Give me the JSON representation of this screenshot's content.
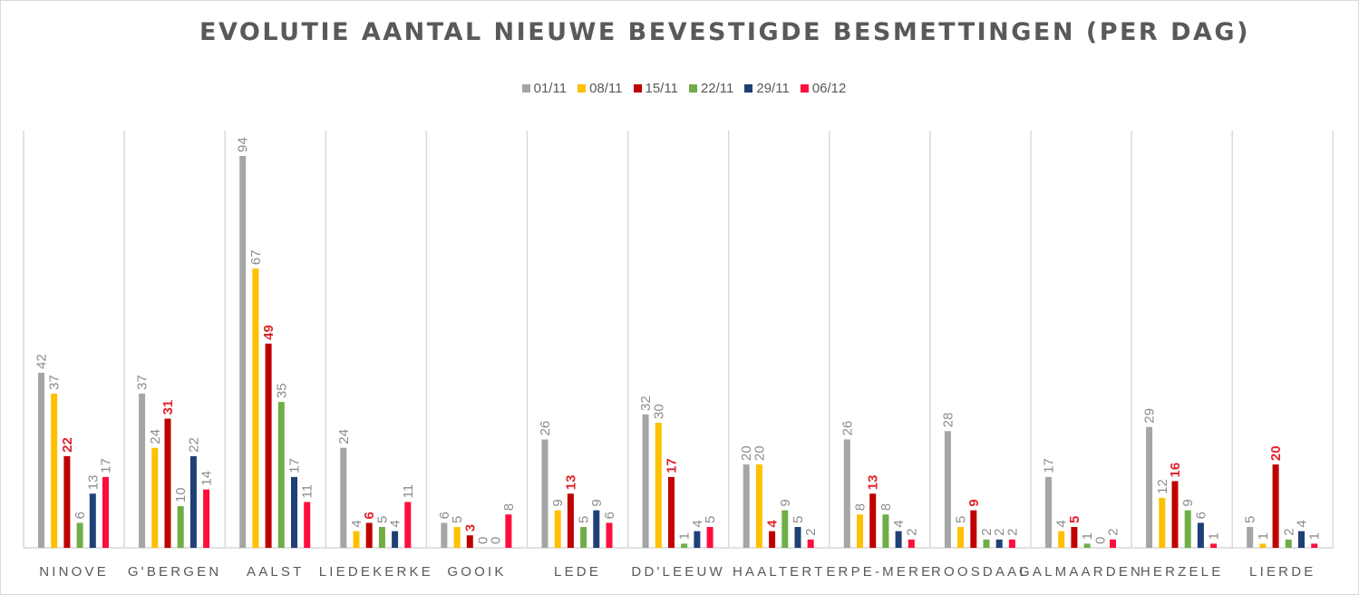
{
  "chart_data": {
    "type": "bar",
    "title": "EVOLUTIE AANTAL NIEUWE BEVESTIGDE BESMETTINGEN (PER DAG)",
    "xlabel": "",
    "ylabel": "",
    "ylim": [
      0,
      100
    ],
    "grid": "vertical category separators",
    "legend_position": "top",
    "categories": [
      "NINOVE",
      "G'BERGEN",
      "AALST",
      "LIEDEKERKE",
      "GOOIK",
      "LEDE",
      "DD'LEEUW",
      "HAALTERT",
      "ERPE-MERE",
      "ROOSDAAL",
      "GALMAARDEN",
      "HERZELE",
      "LIERDE"
    ],
    "series": [
      {
        "name": "01/11",
        "color": "#a5a5a5",
        "label_color": "#8c8c8c",
        "values": [
          42,
          37,
          94,
          24,
          6,
          26,
          32,
          20,
          26,
          28,
          17,
          29,
          5
        ]
      },
      {
        "name": "08/11",
        "color": "#ffc000",
        "label_color": "#8c8c8c",
        "values": [
          37,
          24,
          67,
          4,
          5,
          9,
          30,
          20,
          8,
          5,
          4,
          12,
          1
        ]
      },
      {
        "name": "15/11",
        "color": "#c00000",
        "label_color": "#e0242b",
        "label_bold": true,
        "values": [
          22,
          31,
          49,
          6,
          3,
          13,
          17,
          4,
          13,
          9,
          5,
          16,
          20
        ]
      },
      {
        "name": "22/11",
        "color": "#70ad47",
        "label_color": "#8c8c8c",
        "values": [
          6,
          10,
          35,
          5,
          0,
          5,
          1,
          9,
          8,
          2,
          1,
          9,
          2
        ]
      },
      {
        "name": "29/11",
        "color": "#1f3f77",
        "label_color": "#8c8c8c",
        "values": [
          13,
          22,
          17,
          4,
          0,
          9,
          4,
          5,
          4,
          2,
          0,
          6,
          4
        ]
      },
      {
        "name": "06/12",
        "color": "#ff0d3c",
        "label_color": "#8c8c8c",
        "values": [
          17,
          14,
          11,
          11,
          8,
          6,
          5,
          2,
          2,
          2,
          2,
          1,
          1
        ]
      }
    ],
    "category_labels_display": [
      "NINOVE",
      "G'BERGEN",
      "AALST",
      "LIEDEKERKE",
      "GOOIK",
      "LEDE",
      "DD'LEEUW",
      "HAALTERT",
      "ERPE-MERE",
      "ROOSDAAL",
      "GALMAARDEN",
      "HERZELE",
      "LIERDE"
    ]
  }
}
